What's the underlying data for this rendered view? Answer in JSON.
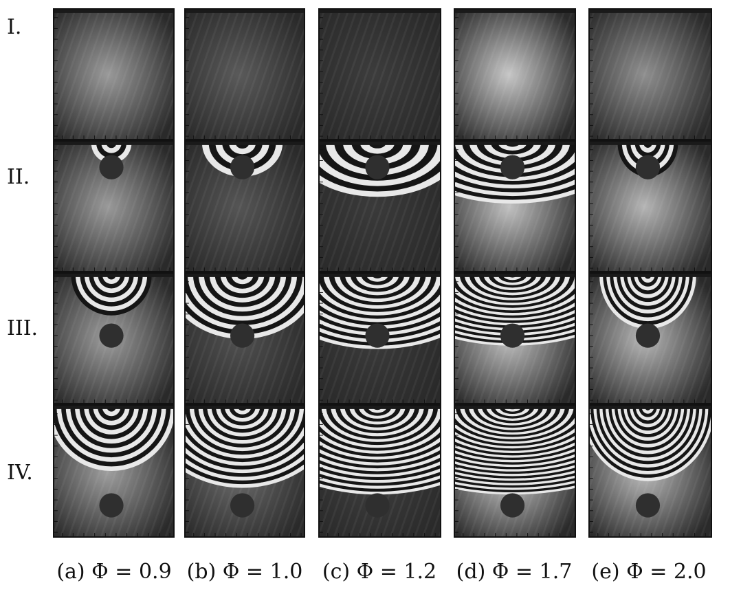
{
  "row_labels": [
    "I.",
    "II.",
    "III.",
    "IV."
  ],
  "column_captions": [
    "(a) Φ = 0.9",
    "(b) Φ = 1.0",
    "(c) Φ = 1.2",
    "(d) Φ = 1.7",
    "(e) Φ = 2.0"
  ],
  "figure": {
    "description": "Grid of grayscale interferometry images; rows I–IV, columns (a)–(e)",
    "panel_content": "fringe patterns around a dark circular object",
    "colors": {
      "background": "#ffffff",
      "frame": "#111111",
      "dark_disk": "#2f2f2f"
    }
  }
}
